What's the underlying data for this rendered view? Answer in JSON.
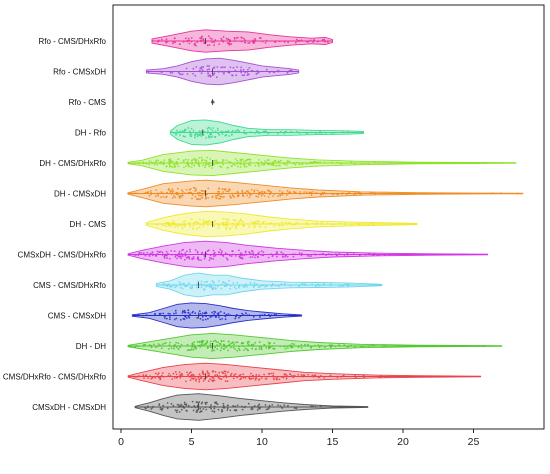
{
  "chart_data": {
    "type": "violin",
    "title": "",
    "xlabel": "",
    "ylabel": "",
    "xlim": [
      -0.5,
      29
    ],
    "xticks": [
      0,
      5,
      10,
      15,
      20,
      25
    ],
    "grid": false,
    "legend": "none",
    "categories": [
      {
        "label": "Rfo - CMS/DHxRfo",
        "color": "#e8329a",
        "min": 2.2,
        "max": 15.0,
        "median": 6.0,
        "q1": 4.5,
        "q3": 9.0,
        "shape": [
          [
            2.2,
            0.15
          ],
          [
            3.5,
            0.4
          ],
          [
            5.0,
            0.7
          ],
          [
            6.0,
            0.8
          ],
          [
            7.5,
            0.7
          ],
          [
            9.0,
            0.65
          ],
          [
            10.5,
            0.45
          ],
          [
            12,
            0.3
          ],
          [
            13.5,
            0.2
          ],
          [
            14.5,
            0.25
          ],
          [
            15.0,
            0.1
          ]
        ]
      },
      {
        "label": "Rfo - CMSxDH",
        "color": "#a64fd6",
        "min": 1.8,
        "max": 12.6,
        "median": 6.5,
        "q1": 5.0,
        "q3": 8.0,
        "shape": [
          [
            1.8,
            0.1
          ],
          [
            3.0,
            0.2
          ],
          [
            4.0,
            0.4
          ],
          [
            5.0,
            0.7
          ],
          [
            6.0,
            0.9
          ],
          [
            7.0,
            0.95
          ],
          [
            8.0,
            0.8
          ],
          [
            9.0,
            0.6
          ],
          [
            10.0,
            0.4
          ],
          [
            11.0,
            0.3
          ],
          [
            12.0,
            0.2
          ],
          [
            12.6,
            0.1
          ]
        ]
      },
      {
        "label": "Rfo - CMS",
        "color": "#6a6a6a",
        "min": 6.5,
        "max": 6.5,
        "median": 6.5,
        "q1": 6.5,
        "q3": 6.5,
        "shape": [
          [
            6.42,
            0.06
          ],
          [
            6.58,
            0.06
          ]
        ]
      },
      {
        "label": "DH - Rfo",
        "color": "#3fd98f",
        "min": 3.5,
        "max": 17.2,
        "median": 5.8,
        "q1": 4.8,
        "q3": 7.5,
        "shape": [
          [
            3.5,
            0.1
          ],
          [
            4.0,
            0.5
          ],
          [
            5.0,
            0.85
          ],
          [
            6.0,
            0.9
          ],
          [
            7.0,
            0.75
          ],
          [
            8.0,
            0.5
          ],
          [
            9.0,
            0.3
          ],
          [
            10.5,
            0.2
          ],
          [
            12,
            0.2
          ],
          [
            14,
            0.15
          ],
          [
            16,
            0.12
          ],
          [
            17.2,
            0.08
          ]
        ]
      },
      {
        "label": "DH - CMS/DHxRfo",
        "color": "#8ee22a",
        "min": 0.5,
        "max": 28.0,
        "median": 6.5,
        "q1": 4.5,
        "q3": 9.5,
        "shape": [
          [
            0.5,
            0.05
          ],
          [
            1.5,
            0.2
          ],
          [
            3.0,
            0.6
          ],
          [
            5.0,
            0.85
          ],
          [
            6.5,
            0.9
          ],
          [
            8.0,
            0.75
          ],
          [
            10.0,
            0.55
          ],
          [
            12.0,
            0.35
          ],
          [
            14.0,
            0.22
          ],
          [
            17.0,
            0.12
          ],
          [
            21.0,
            0.06
          ],
          [
            25.0,
            0.04
          ],
          [
            28.0,
            0.02
          ]
        ]
      },
      {
        "label": "DH - CMSxDH",
        "color": "#f08c24",
        "min": 0.5,
        "max": 28.5,
        "median": 6.0,
        "q1": 4.0,
        "q3": 9.0,
        "shape": [
          [
            0.5,
            0.05
          ],
          [
            1.5,
            0.3
          ],
          [
            3.0,
            0.7
          ],
          [
            5.0,
            0.9
          ],
          [
            6.0,
            0.95
          ],
          [
            8.0,
            0.8
          ],
          [
            10.0,
            0.6
          ],
          [
            12.0,
            0.4
          ],
          [
            14.0,
            0.25
          ],
          [
            17.0,
            0.12
          ],
          [
            21.0,
            0.06
          ],
          [
            25.0,
            0.03
          ],
          [
            28.5,
            0.02
          ]
        ]
      },
      {
        "label": "DH - CMS",
        "color": "#eeea2e",
        "min": 1.8,
        "max": 21.0,
        "median": 6.5,
        "q1": 4.5,
        "q3": 9.5,
        "shape": [
          [
            1.8,
            0.1
          ],
          [
            3.0,
            0.45
          ],
          [
            4.5,
            0.75
          ],
          [
            6.0,
            0.9
          ],
          [
            7.5,
            0.85
          ],
          [
            9.0,
            0.7
          ],
          [
            10.5,
            0.5
          ],
          [
            12.0,
            0.35
          ],
          [
            14.0,
            0.2
          ],
          [
            17.0,
            0.12
          ],
          [
            19.5,
            0.08
          ],
          [
            21.0,
            0.04
          ]
        ]
      },
      {
        "label": "CMSxDH - CMS/DHxRfo",
        "color": "#d136e3",
        "min": 0.5,
        "max": 26.0,
        "median": 6.0,
        "q1": 4.5,
        "q3": 9.0,
        "shape": [
          [
            0.5,
            0.05
          ],
          [
            1.5,
            0.3
          ],
          [
            3.0,
            0.6
          ],
          [
            4.5,
            0.85
          ],
          [
            6.0,
            0.95
          ],
          [
            7.5,
            0.85
          ],
          [
            9.0,
            0.65
          ],
          [
            11.0,
            0.45
          ],
          [
            13.0,
            0.3
          ],
          [
            15.0,
            0.18
          ],
          [
            18.0,
            0.1
          ],
          [
            22.0,
            0.05
          ],
          [
            26.0,
            0.02
          ]
        ]
      },
      {
        "label": "CMS - CMS/DHxRfo",
        "color": "#6fd6ee",
        "min": 2.5,
        "max": 18.5,
        "median": 5.5,
        "q1": 4.5,
        "q3": 7.5,
        "shape": [
          [
            2.5,
            0.1
          ],
          [
            3.5,
            0.3
          ],
          [
            4.5,
            0.7
          ],
          [
            5.5,
            0.85
          ],
          [
            6.5,
            0.7
          ],
          [
            7.5,
            0.7
          ],
          [
            8.5,
            0.5
          ],
          [
            10.0,
            0.3
          ],
          [
            12.0,
            0.2
          ],
          [
            14.0,
            0.18
          ],
          [
            16.0,
            0.15
          ],
          [
            18.5,
            0.05
          ]
        ]
      },
      {
        "label": "CMS - CMSxDH",
        "color": "#2630c9",
        "min": 0.8,
        "max": 12.8,
        "median": 5.5,
        "q1": 4.0,
        "q3": 7.0,
        "shape": [
          [
            0.8,
            0.05
          ],
          [
            2.0,
            0.2
          ],
          [
            3.0,
            0.5
          ],
          [
            4.0,
            0.8
          ],
          [
            5.0,
            0.9
          ],
          [
            6.0,
            0.85
          ],
          [
            7.0,
            0.7
          ],
          [
            8.0,
            0.5
          ],
          [
            9.0,
            0.35
          ],
          [
            10.0,
            0.25
          ],
          [
            11.5,
            0.12
          ],
          [
            12.8,
            0.04
          ]
        ]
      },
      {
        "label": "DH - DH",
        "color": "#52c832",
        "min": 0.5,
        "max": 27.0,
        "median": 6.5,
        "q1": 4.5,
        "q3": 10.0,
        "shape": [
          [
            0.5,
            0.05
          ],
          [
            2.0,
            0.3
          ],
          [
            3.5,
            0.55
          ],
          [
            5.0,
            0.8
          ],
          [
            6.5,
            0.9
          ],
          [
            8.0,
            0.8
          ],
          [
            10.0,
            0.6
          ],
          [
            12.0,
            0.4
          ],
          [
            14.0,
            0.25
          ],
          [
            17.0,
            0.12
          ],
          [
            21.0,
            0.06
          ],
          [
            24.0,
            0.04
          ],
          [
            27.0,
            0.02
          ]
        ]
      },
      {
        "label": "CMS/DHxRfo - CMS/DHxRfo",
        "color": "#e8424a",
        "min": 0.5,
        "max": 25.5,
        "median": 6.0,
        "q1": 4.0,
        "q3": 9.0,
        "shape": [
          [
            0.5,
            0.05
          ],
          [
            1.5,
            0.3
          ],
          [
            3.0,
            0.65
          ],
          [
            4.5,
            0.85
          ],
          [
            6.0,
            0.95
          ],
          [
            7.5,
            0.85
          ],
          [
            9.0,
            0.7
          ],
          [
            11.0,
            0.5
          ],
          [
            13.0,
            0.3
          ],
          [
            15.0,
            0.2
          ],
          [
            18.0,
            0.1
          ],
          [
            21.0,
            0.06
          ],
          [
            25.5,
            0.02
          ]
        ]
      },
      {
        "label": "CMSxDH - CMSxDH",
        "color": "#555555",
        "min": 1.0,
        "max": 17.5,
        "median": 5.5,
        "q1": 4.0,
        "q3": 7.5,
        "shape": [
          [
            1.0,
            0.05
          ],
          [
            2.0,
            0.3
          ],
          [
            3.0,
            0.6
          ],
          [
            4.0,
            0.85
          ],
          [
            5.5,
            0.95
          ],
          [
            7.0,
            0.8
          ],
          [
            8.5,
            0.6
          ],
          [
            10.0,
            0.45
          ],
          [
            11.5,
            0.3
          ],
          [
            13.0,
            0.18
          ],
          [
            15.0,
            0.08
          ],
          [
            17.5,
            0.03
          ]
        ]
      }
    ]
  }
}
